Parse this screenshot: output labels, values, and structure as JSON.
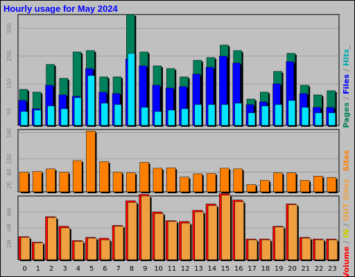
{
  "title": "Hourly usage for May 2024",
  "colors": {
    "pages": "#00805a",
    "files": "#0000ff",
    "hits": "#00e5ff",
    "sites": "#ff8000",
    "kin": "#ff0000",
    "kout": "#f0a040",
    "sep": "#808080"
  },
  "chart_data": [
    {
      "type": "bar",
      "categories": [
        "0",
        "1",
        "2",
        "3",
        "4",
        "5",
        "6",
        "7",
        "8",
        "9",
        "10",
        "11",
        "12",
        "13",
        "14",
        "15",
        "16",
        "17",
        "18",
        "19",
        "20",
        "21",
        "22",
        "23"
      ],
      "ylim": [
        0,
        400
      ],
      "yticks": [
        "50",
        "150",
        "250",
        "350"
      ],
      "side_label": {
        "parts": [
          {
            "text": "Pages",
            "color": "#00805a"
          },
          {
            "text": " / ",
            "color": "#808080"
          },
          {
            "text": "Files",
            "color": "#0000ff"
          },
          {
            "text": " / ",
            "color": "#808080"
          },
          {
            "text": "Hits",
            "color": "#00aaaa"
          },
          {
            "text": "_",
            "color": "#808080"
          }
        ]
      },
      "series": [
        {
          "name": "Pages",
          "values": [
            130,
            120,
            220,
            170,
            265,
            270,
            175,
            175,
            400,
            265,
            215,
            205,
            175,
            235,
            245,
            290,
            270,
            95,
            120,
            195,
            260,
            145,
            110,
            125
          ]
        },
        {
          "name": "Files",
          "values": [
            90,
            60,
            145,
            110,
            105,
            205,
            120,
            115,
            240,
            215,
            145,
            135,
            140,
            185,
            210,
            250,
            225,
            75,
            85,
            150,
            230,
            115,
            65,
            65
          ]
        },
        {
          "name": "Hits",
          "values": [
            50,
            55,
            70,
            60,
            100,
            180,
            80,
            75,
            260,
            65,
            50,
            55,
            60,
            75,
            75,
            75,
            80,
            45,
            70,
            75,
            90,
            65,
            45,
            45
          ]
        }
      ]
    },
    {
      "type": "bar",
      "categories": [
        "0",
        "1",
        "2",
        "3",
        "4",
        "5",
        "6",
        "7",
        "8",
        "9",
        "10",
        "11",
        "12",
        "13",
        "14",
        "15",
        "16",
        "17",
        "18",
        "19",
        "20",
        "21",
        "22",
        "23"
      ],
      "ylim": [
        0,
        190
      ],
      "yticks": [
        "20",
        "60",
        "100",
        "180"
      ],
      "side_label": {
        "parts": [
          {
            "text": "Sites",
            "color": "#ff8000"
          }
        ]
      },
      "series": [
        {
          "name": "Sites",
          "values": [
            60,
            62,
            70,
            60,
            95,
            185,
            92,
            60,
            58,
            90,
            72,
            73,
            45,
            55,
            56,
            72,
            70,
            22,
            35,
            58,
            58,
            35,
            48,
            44
          ]
        }
      ]
    },
    {
      "type": "bar",
      "categories": [
        "0",
        "1",
        "2",
        "3",
        "4",
        "5",
        "6",
        "7",
        "8",
        "9",
        "10",
        "11",
        "12",
        "13",
        "14",
        "15",
        "16",
        "17",
        "18",
        "19",
        "20",
        "21",
        "22",
        "23"
      ],
      "ylim": [
        0,
        8
      ],
      "yticks": [
        "2M",
        "4M",
        "6M"
      ],
      "side_label": {
        "parts": [
          {
            "text": "Volume",
            "color": "#ff0000"
          },
          {
            "text": " / ",
            "color": "#808080"
          },
          {
            "text": "IN",
            "color": "#cccc00"
          },
          {
            "text": " / ",
            "color": "#808080"
          },
          {
            "text": "OUT",
            "color": "#f0a040"
          },
          {
            "text": " ",
            "color": "#808080"
          },
          {
            "text": "Sites",
            "color": "#f0a040"
          }
        ]
      },
      "series": [
        {
          "name": "IN",
          "values": [
            2.9,
            2.2,
            5.4,
            4.2,
            2.4,
            2.8,
            2.7,
            4.3,
            7.4,
            8.2,
            6.0,
            4.9,
            4.8,
            6.2,
            7.0,
            8.3,
            7.5,
            2.6,
            2.6,
            4.2,
            7.0,
            2.8,
            2.6,
            2.6
          ]
        },
        {
          "name": "OUT",
          "values": [
            2.8,
            2.1,
            5.3,
            4.0,
            2.3,
            2.7,
            2.5,
            4.2,
            7.2,
            8.0,
            5.8,
            4.8,
            4.6,
            6.0,
            6.8,
            8.1,
            7.3,
            2.5,
            2.5,
            4.1,
            6.9,
            2.7,
            2.5,
            2.5
          ]
        }
      ]
    }
  ]
}
